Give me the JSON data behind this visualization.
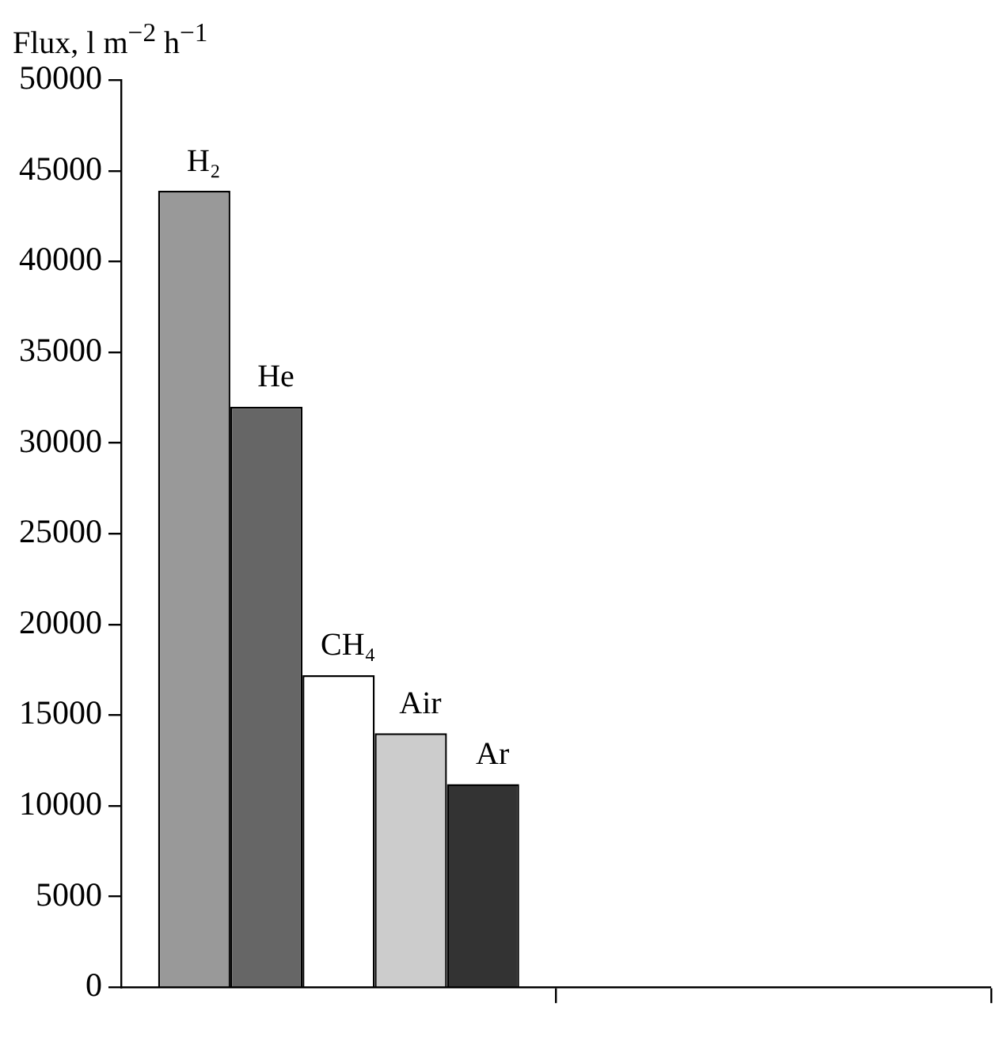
{
  "chart_data": {
    "type": "bar",
    "ylabel": "Flux, l m$^{−2}$ h$^{−1}$",
    "categories": [
      null,
      null
    ],
    "series": [
      {
        "name": "H₂",
        "color": "#999999",
        "values": [
          43900,
          null
        ]
      },
      {
        "name": "He",
        "color": "#666666",
        "values": [
          32000,
          null
        ]
      },
      {
        "name": "CH₄",
        "color": "#ffffff",
        "values": [
          17200,
          null
        ]
      },
      {
        "name": "Air",
        "color": "#cccccc",
        "values": [
          14000,
          null
        ]
      },
      {
        "name": "Ar",
        "color": "#333333",
        "values": [
          11200,
          null
        ]
      }
    ],
    "ylim": [
      0,
      50000
    ],
    "yticks": [
      0,
      5000,
      10000,
      15000,
      20000,
      25000,
      30000,
      35000,
      40000,
      45000,
      50000
    ],
    "grid": false,
    "legend": false
  }
}
